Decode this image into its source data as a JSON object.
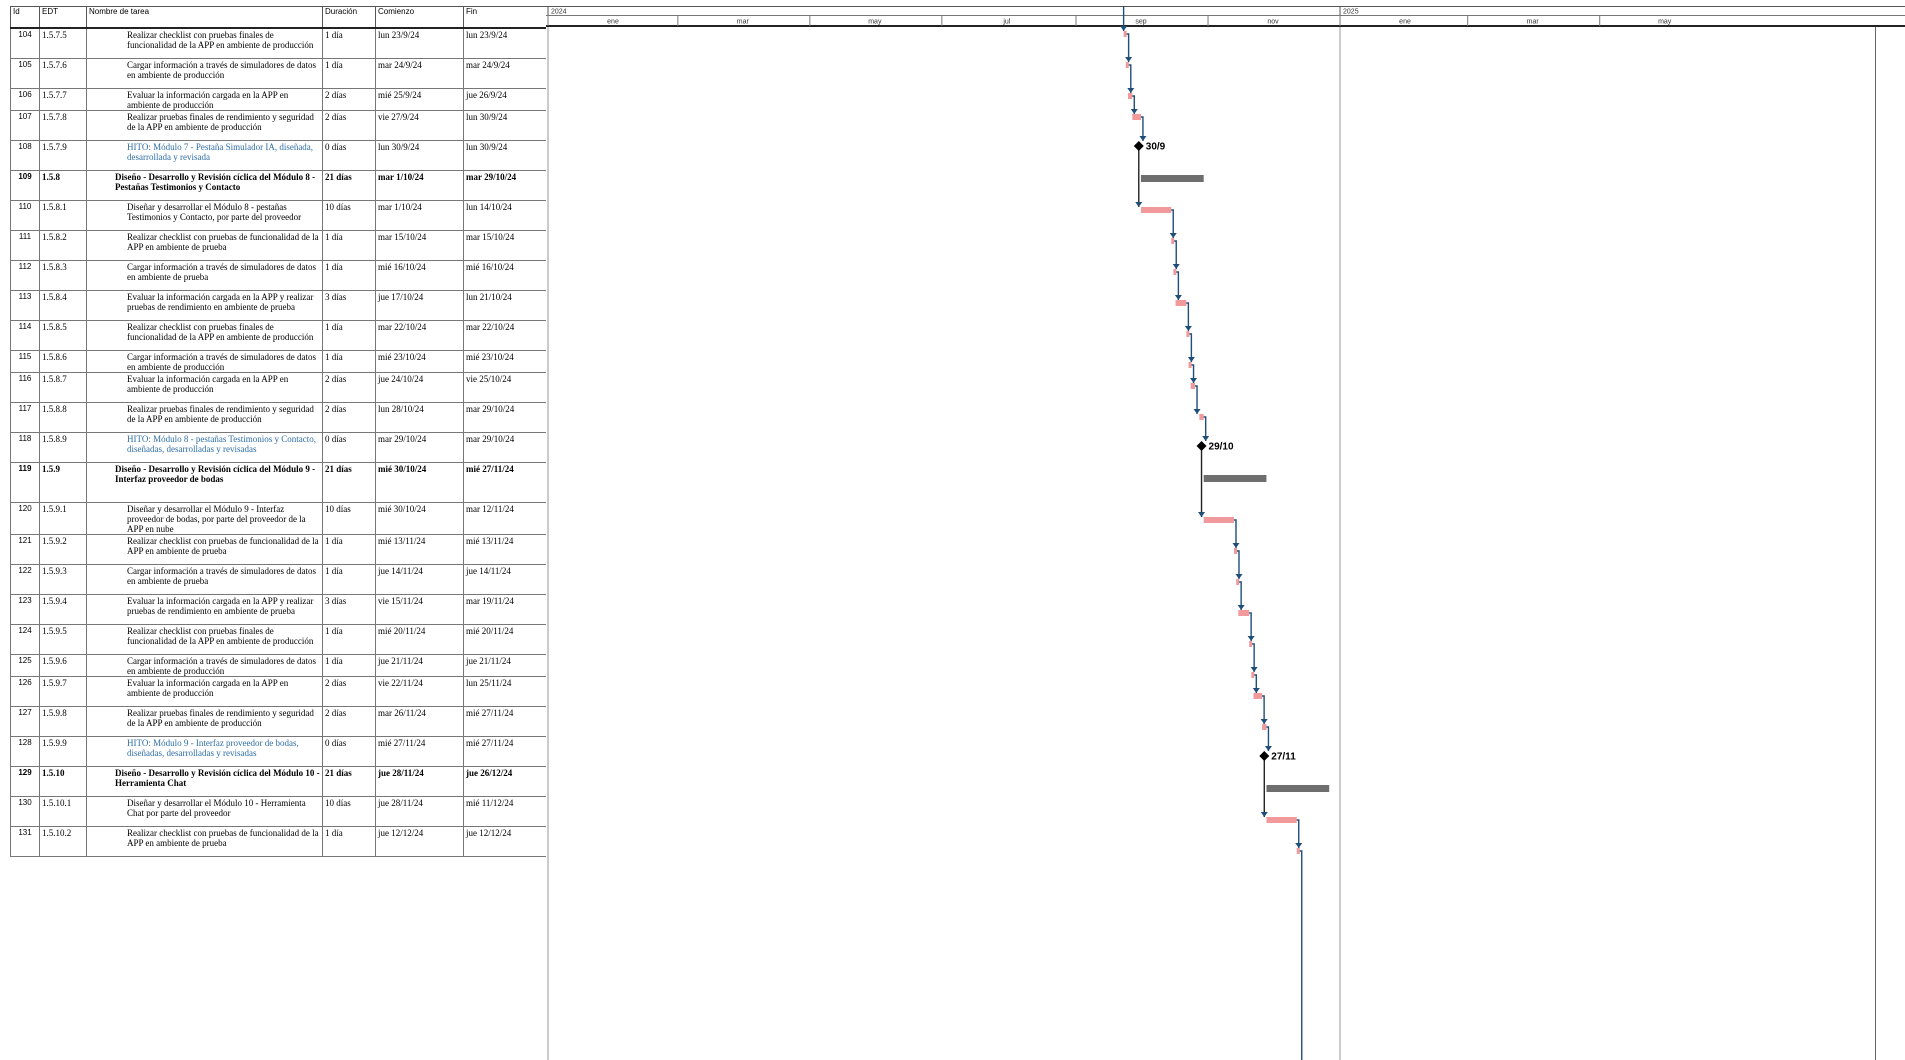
{
  "columns": {
    "id": "Id",
    "edt": "EDT",
    "name": "Nombre de tarea",
    "duration": "Duración",
    "start": "Comienzo",
    "finish": "Fin"
  },
  "timescale": {
    "year_labels": [
      "2024",
      "2025"
    ],
    "month_labels": [
      "ene",
      "mar",
      "may",
      "jul",
      "sep",
      "nov",
      "ene",
      "mar",
      "may"
    ]
  },
  "colors": {
    "task_bar": "#f2999c",
    "summary_bar": "#6e6e6e",
    "link_line": "#1f4e79",
    "milestone": "#000000",
    "milestone_text": "#2e6ea6"
  },
  "chart_data": {
    "type": "gantt",
    "timescale_unit": "month",
    "tasks": [
      {
        "id": "104",
        "edt": "1.5.7.5",
        "name": "Realizar checklist con pruebas finales de funcionalidad de la APP en ambiente de producción",
        "duration": "1 día",
        "start": "lun 23/9/24",
        "finish": "lun 23/9/24",
        "kind": "task",
        "level": 4,
        "start_date": "2024-09-23",
        "end_date": "2024-09-23"
      },
      {
        "id": "105",
        "edt": "1.5.7.6",
        "name": "Cargar información a través de simuladores de datos en ambiente de producción",
        "duration": "1 día",
        "start": "mar 24/9/24",
        "finish": "mar 24/9/24",
        "kind": "task",
        "level": 4,
        "start_date": "2024-09-24",
        "end_date": "2024-09-24"
      },
      {
        "id": "106",
        "edt": "1.5.7.7",
        "name": "Evaluar la información cargada en la APP en ambiente de producción",
        "duration": "2 días",
        "start": "mié 25/9/24",
        "finish": "jue 26/9/24",
        "kind": "task",
        "level": 4,
        "start_date": "2024-09-25",
        "end_date": "2024-09-26"
      },
      {
        "id": "107",
        "edt": "1.5.7.8",
        "name": "Realizar pruebas finales de rendimiento y seguridad de la APP en ambiente de producción",
        "duration": "2 días",
        "start": "vie 27/9/24",
        "finish": "lun 30/9/24",
        "kind": "task",
        "level": 4,
        "start_date": "2024-09-27",
        "end_date": "2024-09-30"
      },
      {
        "id": "108",
        "edt": "1.5.7.9",
        "name": "HITO: Módulo 7 - Pestaña Simulador IA, diseñada, desarrollada y revisada",
        "duration": "0 días",
        "start": "lun 30/9/24",
        "finish": "lun 30/9/24",
        "kind": "milestone",
        "level": 4,
        "start_date": "2024-09-30",
        "end_date": "2024-09-30",
        "milestone_label": "30/9"
      },
      {
        "id": "109",
        "edt": "1.5.8",
        "name": "Diseño - Desarrollo y Revisión cíclica del Módulo 8 - Pestañas Testimonios y Contacto",
        "duration": "21 días",
        "start": "mar 1/10/24",
        "finish": "mar 29/10/24",
        "kind": "summary",
        "level": 3,
        "start_date": "2024-10-01",
        "end_date": "2024-10-29"
      },
      {
        "id": "110",
        "edt": "1.5.8.1",
        "name": "Diseñar y desarrollar el Módulo 8 - pestañas Testimonios y Contacto, por parte del proveedor",
        "duration": "10 días",
        "start": "mar 1/10/24",
        "finish": "lun 14/10/24",
        "kind": "task",
        "level": 4,
        "start_date": "2024-10-01",
        "end_date": "2024-10-14"
      },
      {
        "id": "111",
        "edt": "1.5.8.2",
        "name": "Realizar checklist con pruebas de funcionalidad de la APP en ambiente de prueba",
        "duration": "1 día",
        "start": "mar 15/10/24",
        "finish": "mar 15/10/24",
        "kind": "task",
        "level": 4,
        "start_date": "2024-10-15",
        "end_date": "2024-10-15"
      },
      {
        "id": "112",
        "edt": "1.5.8.3",
        "name": "Cargar información a través de simuladores de datos en ambiente de prueba",
        "duration": "1 día",
        "start": "mié 16/10/24",
        "finish": "mié 16/10/24",
        "kind": "task",
        "level": 4,
        "start_date": "2024-10-16",
        "end_date": "2024-10-16"
      },
      {
        "id": "113",
        "edt": "1.5.8.4",
        "name": "Evaluar la información cargada en la APP y realizar pruebas de rendimiento en ambiente de prueba",
        "duration": "3 días",
        "start": "jue 17/10/24",
        "finish": "lun 21/10/24",
        "kind": "task",
        "level": 4,
        "start_date": "2024-10-17",
        "end_date": "2024-10-21"
      },
      {
        "id": "114",
        "edt": "1.5.8.5",
        "name": "Realizar checklist con pruebas finales de funcionalidad de la APP en ambiente de producción",
        "duration": "1 día",
        "start": "mar 22/10/24",
        "finish": "mar 22/10/24",
        "kind": "task",
        "level": 4,
        "start_date": "2024-10-22",
        "end_date": "2024-10-22"
      },
      {
        "id": "115",
        "edt": "1.5.8.6",
        "name": "Cargar información a través de simuladores de datos en ambiente de producción",
        "duration": "1 día",
        "start": "mié 23/10/24",
        "finish": "mié 23/10/24",
        "kind": "task",
        "level": 4,
        "start_date": "2024-10-23",
        "end_date": "2024-10-23"
      },
      {
        "id": "116",
        "edt": "1.5.8.7",
        "name": "Evaluar la información cargada en la APP en ambiente de producción",
        "duration": "2 días",
        "start": "jue 24/10/24",
        "finish": "vie 25/10/24",
        "kind": "task",
        "level": 4,
        "start_date": "2024-10-24",
        "end_date": "2024-10-25"
      },
      {
        "id": "117",
        "edt": "1.5.8.8",
        "name": "Realizar pruebas finales de rendimiento y seguridad de la APP en ambiente de producción",
        "duration": "2 días",
        "start": "lun 28/10/24",
        "finish": "mar 29/10/24",
        "kind": "task",
        "level": 4,
        "start_date": "2024-10-28",
        "end_date": "2024-10-29"
      },
      {
        "id": "118",
        "edt": "1.5.8.9",
        "name": "HITO: Módulo 8 - pestañas Testimonios y Contacto, diseñadas, desarrolladas y revisadas",
        "duration": "0 días",
        "start": "mar 29/10/24",
        "finish": "mar 29/10/24",
        "kind": "milestone",
        "level": 4,
        "start_date": "2024-10-29",
        "end_date": "2024-10-29",
        "milestone_label": "29/10"
      },
      {
        "id": "119",
        "edt": "1.5.9",
        "name": "Diseño - Desarrollo y Revisión cíclica del Módulo 9 - Interfaz proveedor de bodas",
        "duration": "21 días",
        "start": "mié 30/10/24",
        "finish": "mié 27/11/24",
        "kind": "summary",
        "level": 3,
        "start_date": "2024-10-30",
        "end_date": "2024-11-27"
      },
      {
        "id": "120",
        "edt": "1.5.9.1",
        "name": "Diseñar y desarrollar el Módulo 9 - Interfaz proveedor de bodas, por parte del proveedor de la APP en nube",
        "duration": "10 días",
        "start": "mié 30/10/24",
        "finish": "mar 12/11/24",
        "kind": "task",
        "level": 4,
        "start_date": "2024-10-30",
        "end_date": "2024-11-12"
      },
      {
        "id": "121",
        "edt": "1.5.9.2",
        "name": "Realizar checklist con pruebas de funcionalidad de la APP en ambiente de prueba",
        "duration": "1 día",
        "start": "mié 13/11/24",
        "finish": "mié 13/11/24",
        "kind": "task",
        "level": 4,
        "start_date": "2024-11-13",
        "end_date": "2024-11-13"
      },
      {
        "id": "122",
        "edt": "1.5.9.3",
        "name": "Cargar información a través de simuladores de datos en ambiente de prueba",
        "duration": "1 día",
        "start": "jue 14/11/24",
        "finish": "jue 14/11/24",
        "kind": "task",
        "level": 4,
        "start_date": "2024-11-14",
        "end_date": "2024-11-14"
      },
      {
        "id": "123",
        "edt": "1.5.9.4",
        "name": "Evaluar la información cargada en la APP y realizar pruebas de rendimiento en ambiente de prueba",
        "duration": "3 días",
        "start": "vie 15/11/24",
        "finish": "mar 19/11/24",
        "kind": "task",
        "level": 4,
        "start_date": "2024-11-15",
        "end_date": "2024-11-19"
      },
      {
        "id": "124",
        "edt": "1.5.9.5",
        "name": "Realizar checklist con pruebas finales de funcionalidad de la APP en ambiente de producción",
        "duration": "1 día",
        "start": "mié 20/11/24",
        "finish": "mié 20/11/24",
        "kind": "task",
        "level": 4,
        "start_date": "2024-11-20",
        "end_date": "2024-11-20"
      },
      {
        "id": "125",
        "edt": "1.5.9.6",
        "name": "Cargar información a través de simuladores de datos en ambiente de producción",
        "duration": "1 día",
        "start": "jue 21/11/24",
        "finish": "jue 21/11/24",
        "kind": "task",
        "level": 4,
        "start_date": "2024-11-21",
        "end_date": "2024-11-21"
      },
      {
        "id": "126",
        "edt": "1.5.9.7",
        "name": "Evaluar la información cargada en la APP en ambiente de producción",
        "duration": "2 días",
        "start": "vie 22/11/24",
        "finish": "lun 25/11/24",
        "kind": "task",
        "level": 4,
        "start_date": "2024-11-22",
        "end_date": "2024-11-25"
      },
      {
        "id": "127",
        "edt": "1.5.9.8",
        "name": "Realizar pruebas finales de rendimiento y seguridad de la APP en ambiente de producción",
        "duration": "2 días",
        "start": "mar 26/11/24",
        "finish": "mié 27/11/24",
        "kind": "task",
        "level": 4,
        "start_date": "2024-11-26",
        "end_date": "2024-11-27"
      },
      {
        "id": "128",
        "edt": "1.5.9.9",
        "name": "HITO: Módulo 9 - Interfaz proveedor de bodas, diseñadas, desarrolladas y revisadas",
        "duration": "0 días",
        "start": "mié 27/11/24",
        "finish": "mié 27/11/24",
        "kind": "milestone",
        "level": 4,
        "start_date": "2024-11-27",
        "end_date": "2024-11-27",
        "milestone_label": "27/11"
      },
      {
        "id": "129",
        "edt": "1.5.10",
        "name": "Diseño - Desarrollo y Revisión cíclica del Módulo 10 - Herramienta Chat",
        "duration": "21 días",
        "start": "jue 28/11/24",
        "finish": "jue 26/12/24",
        "kind": "summary",
        "level": 3,
        "start_date": "2024-11-28",
        "end_date": "2024-12-26"
      },
      {
        "id": "130",
        "edt": "1.5.10.1",
        "name": "Diseñar y desarrollar el Módulo 10 - Herramienta Chat por parte del proveedor",
        "duration": "10 días",
        "start": "jue 28/11/24",
        "finish": "mié 11/12/24",
        "kind": "task",
        "level": 4,
        "start_date": "2024-11-28",
        "end_date": "2024-12-11"
      },
      {
        "id": "131",
        "edt": "1.5.10.2",
        "name": "Realizar checklist con pruebas de funcionalidad de la APP en ambiente de prueba",
        "duration": "1 día",
        "start": "jue 12/12/24",
        "finish": "jue 12/12/24",
        "kind": "task",
        "level": 4,
        "start_date": "2024-12-12",
        "end_date": "2024-12-12"
      }
    ]
  }
}
